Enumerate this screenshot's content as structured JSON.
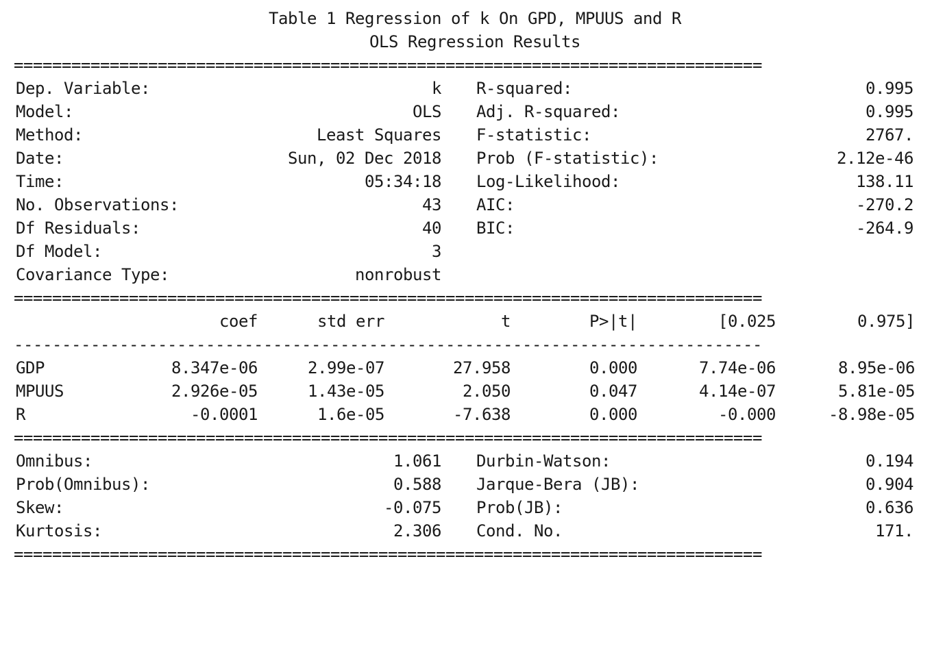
{
  "titles": {
    "table_title": "Table 1 Regression of k On GPD, MPUUS and R",
    "subtitle": "OLS Regression Results"
  },
  "rules": {
    "double": "==============================================================================",
    "single": "------------------------------------------------------------------------------"
  },
  "summary": {
    "left": [
      {
        "label": "Dep. Variable:",
        "value": "k"
      },
      {
        "label": "Model:",
        "value": "OLS"
      },
      {
        "label": "Method:",
        "value": "Least Squares"
      },
      {
        "label": "Date:",
        "value": "Sun, 02 Dec 2018"
      },
      {
        "label": "Time:",
        "value": "05:34:18"
      },
      {
        "label": "No. Observations:",
        "value": "43"
      },
      {
        "label": "Df Residuals:",
        "value": "40"
      },
      {
        "label": "Df Model:",
        "value": "3"
      },
      {
        "label": "Covariance Type:",
        "value": "nonrobust"
      }
    ],
    "right": [
      {
        "label": "R-squared:",
        "value": "0.995"
      },
      {
        "label": "Adj. R-squared:",
        "value": "0.995"
      },
      {
        "label": "F-statistic:",
        "value": "2767."
      },
      {
        "label": "Prob (F-statistic):",
        "value": "2.12e-46"
      },
      {
        "label": "Log-Likelihood:",
        "value": "138.11"
      },
      {
        "label": "AIC:",
        "value": "-270.2"
      },
      {
        "label": "BIC:",
        "value": "-264.9"
      }
    ]
  },
  "coef_table": {
    "headers": [
      "coef",
      "std err",
      "t",
      "P>|t|",
      "[0.025",
      "0.975]"
    ],
    "rows": [
      {
        "name": "GDP",
        "coef": "8.347e-06",
        "std_err": "2.99e-07",
        "t": "27.958",
        "p": "0.000",
        "lo": "7.74e-06",
        "hi": "8.95e-06"
      },
      {
        "name": "MPUUS",
        "coef": "2.926e-05",
        "std_err": "1.43e-05",
        "t": "2.050",
        "p": "0.047",
        "lo": "4.14e-07",
        "hi": "5.81e-05"
      },
      {
        "name": "R",
        "coef": "-0.0001",
        "std_err": "1.6e-05",
        "t": "-7.638",
        "p": "0.000",
        "lo": "-0.000",
        "hi": "-8.98e-05"
      }
    ]
  },
  "diagnostics": {
    "left": [
      {
        "label": "Omnibus:",
        "value": "1.061"
      },
      {
        "label": "Prob(Omnibus):",
        "value": "0.588"
      },
      {
        "label": "Skew:",
        "value": "-0.075"
      },
      {
        "label": "Kurtosis:",
        "value": "2.306"
      }
    ],
    "right": [
      {
        "label": "Durbin-Watson:",
        "value": "0.194"
      },
      {
        "label": "Jarque-Bera (JB):",
        "value": "0.904"
      },
      {
        "label": "Prob(JB):",
        "value": "0.636"
      },
      {
        "label": "Cond. No.",
        "value": "171."
      }
    ]
  }
}
